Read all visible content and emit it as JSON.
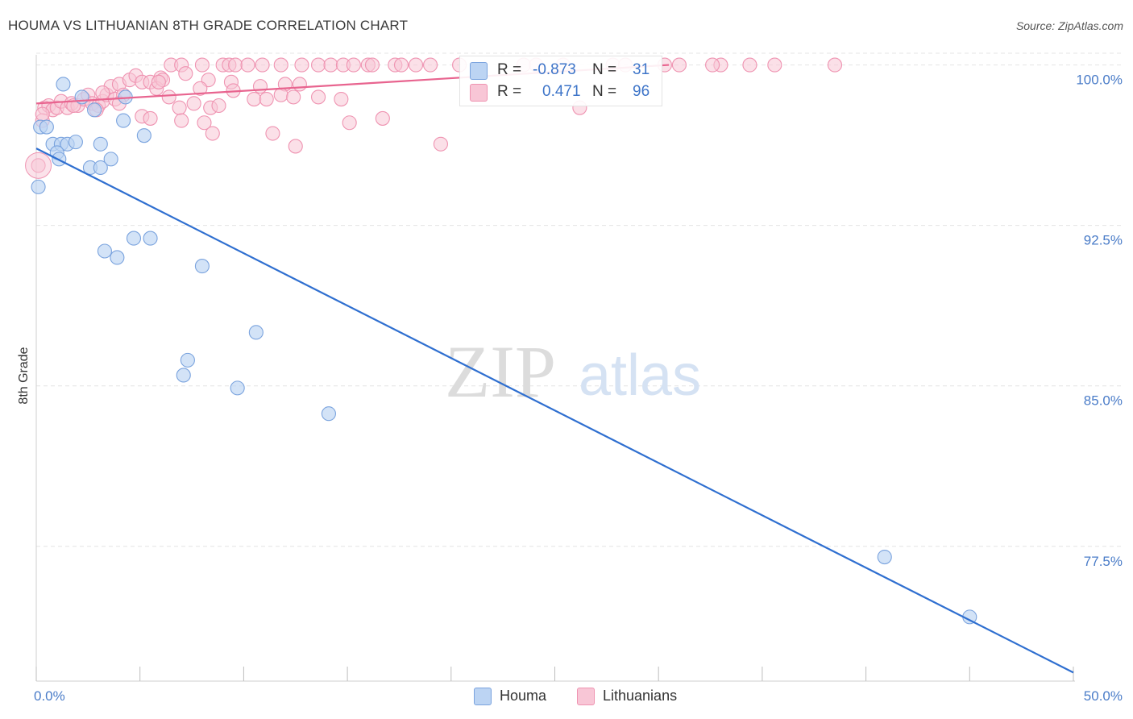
{
  "title": "HOUMA VS LITHUANIAN 8TH GRADE CORRELATION CHART",
  "source": "Source: ZipAtlas.com",
  "watermark": {
    "zip": "ZIP",
    "atlas": "atlas"
  },
  "colors": {
    "houma_fill": "#bcd4f3",
    "houma_stroke": "#7aa3de",
    "houma_line": "#2f6fd0",
    "lith_fill": "#f8c6d6",
    "lith_stroke": "#ef93b1",
    "lith_line": "#e8648f",
    "tick_label": "#4a7cc8",
    "grid": "#e4e4e4"
  },
  "legend": {
    "houma": {
      "r_label": "R =",
      "r_value": "-0.873",
      "n_label": "N =",
      "n_value": "31"
    },
    "lith": {
      "r_label": "R =",
      "r_value": "0.471",
      "n_label": "N =",
      "n_value": "96"
    }
  },
  "bottom_legend": [
    "Houma",
    "Lithuanians"
  ],
  "chart_data": {
    "type": "scatter",
    "xlabel": "",
    "ylabel": "8th Grade",
    "xlim": [
      0,
      50
    ],
    "ylim": [
      71.2,
      100.7
    ],
    "x_tick_labels": [
      {
        "value": 0,
        "label": "0.0%"
      },
      {
        "value": 50,
        "label": "50.0%"
      }
    ],
    "y_ticks": [
      {
        "value": 100,
        "label": "100.0%"
      },
      {
        "value": 92.5,
        "label": "92.5%"
      },
      {
        "value": 85,
        "label": "85.0%"
      },
      {
        "value": 77.5,
        "label": "77.5%"
      }
    ],
    "x_minor_ticks": [
      0,
      5,
      10,
      15,
      20,
      25,
      30,
      35,
      40,
      45,
      50
    ],
    "grid": true,
    "series": [
      {
        "name": "Houma",
        "points": [
          [
            1.3,
            99.1
          ],
          [
            0.2,
            97.1
          ],
          [
            0.5,
            97.1
          ],
          [
            0.8,
            96.3
          ],
          [
            1.2,
            96.3
          ],
          [
            1.5,
            96.3
          ],
          [
            1.9,
            96.4
          ],
          [
            3.1,
            96.3
          ],
          [
            1.0,
            95.9
          ],
          [
            1.1,
            95.6
          ],
          [
            3.6,
            95.6
          ],
          [
            2.6,
            95.2
          ],
          [
            3.1,
            95.2
          ],
          [
            0.1,
            94.3
          ],
          [
            2.2,
            98.5
          ],
          [
            2.8,
            97.9
          ],
          [
            4.2,
            97.4
          ],
          [
            5.2,
            96.7
          ],
          [
            4.3,
            98.5
          ],
          [
            4.7,
            91.9
          ],
          [
            5.5,
            91.9
          ],
          [
            3.3,
            91.3
          ],
          [
            3.9,
            91.0
          ],
          [
            8.0,
            90.6
          ],
          [
            10.6,
            87.5
          ],
          [
            7.3,
            86.2
          ],
          [
            7.1,
            85.5
          ],
          [
            9.7,
            84.9
          ],
          [
            14.1,
            83.7
          ],
          [
            40.9,
            77.0
          ],
          [
            45.0,
            74.2
          ]
        ],
        "trend": {
          "x": [
            0,
            50
          ],
          "y": [
            96.1,
            71.6
          ]
        }
      },
      {
        "name": "Lithuanians",
        "points": [
          [
            6.5,
            100
          ],
          [
            7.0,
            100
          ],
          [
            8.0,
            100
          ],
          [
            9.0,
            100
          ],
          [
            9.3,
            100
          ],
          [
            9.6,
            100
          ],
          [
            10.2,
            100
          ],
          [
            10.9,
            100
          ],
          [
            11.8,
            100
          ],
          [
            12.8,
            100
          ],
          [
            13.6,
            100
          ],
          [
            14.2,
            100
          ],
          [
            14.8,
            100
          ],
          [
            15.3,
            100
          ],
          [
            16.0,
            100
          ],
          [
            16.2,
            100
          ],
          [
            17.3,
            100
          ],
          [
            17.6,
            100
          ],
          [
            18.3,
            100
          ],
          [
            19.0,
            100
          ],
          [
            20.4,
            100
          ],
          [
            23.5,
            100
          ],
          [
            24.1,
            100
          ],
          [
            25.4,
            100
          ],
          [
            27.8,
            100
          ],
          [
            28.4,
            100
          ],
          [
            30.3,
            100
          ],
          [
            33.0,
            100
          ],
          [
            34.4,
            100
          ],
          [
            35.6,
            100
          ],
          [
            38.5,
            100
          ],
          [
            31.0,
            100.0
          ],
          [
            32.6,
            100.0
          ],
          [
            0.4,
            98.0
          ],
          [
            0.6,
            98.1
          ],
          [
            0.8,
            97.9
          ],
          [
            1.0,
            98.0
          ],
          [
            1.2,
            98.3
          ],
          [
            1.5,
            98.0
          ],
          [
            1.7,
            98.2
          ],
          [
            2.0,
            98.1
          ],
          [
            2.3,
            98.4
          ],
          [
            2.5,
            98.6
          ],
          [
            2.7,
            98.2
          ],
          [
            3.0,
            98.1
          ],
          [
            3.2,
            98.3
          ],
          [
            3.4,
            98.6
          ],
          [
            3.6,
            99.0
          ],
          [
            3.8,
            98.4
          ],
          [
            4.0,
            99.1
          ],
          [
            4.2,
            98.6
          ],
          [
            4.5,
            99.3
          ],
          [
            4.8,
            99.5
          ],
          [
            5.1,
            99.2
          ],
          [
            5.5,
            99.2
          ],
          [
            6.0,
            99.4
          ],
          [
            6.4,
            98.5
          ],
          [
            7.2,
            99.6
          ],
          [
            8.3,
            99.3
          ],
          [
            9.4,
            99.2
          ],
          [
            12.0,
            99.1
          ],
          [
            5.8,
            98.9
          ],
          [
            6.9,
            98.0
          ],
          [
            7.6,
            98.2
          ],
          [
            8.4,
            98.0
          ],
          [
            8.8,
            98.1
          ],
          [
            9.5,
            98.8
          ],
          [
            10.5,
            98.4
          ],
          [
            11.1,
            98.4
          ],
          [
            11.8,
            98.6
          ],
          [
            12.4,
            98.5
          ],
          [
            13.6,
            98.5
          ],
          [
            14.7,
            98.4
          ],
          [
            5.1,
            97.6
          ],
          [
            5.5,
            97.5
          ],
          [
            7.0,
            97.4
          ],
          [
            8.1,
            97.3
          ],
          [
            8.5,
            96.8
          ],
          [
            11.4,
            96.8
          ],
          [
            12.5,
            96.2
          ],
          [
            15.1,
            97.3
          ],
          [
            16.7,
            97.5
          ],
          [
            19.5,
            96.3
          ],
          [
            26.2,
            98.0
          ],
          [
            3.2,
            98.7
          ],
          [
            7.9,
            98.9
          ],
          [
            6.1,
            99.3
          ],
          [
            0.3,
            97.4
          ],
          [
            0.1,
            95.3
          ],
          [
            0.3,
            97.7
          ],
          [
            1.8,
            98.1
          ],
          [
            10.8,
            99.0
          ],
          [
            5.9,
            99.2
          ],
          [
            12.7,
            99.1
          ],
          [
            4.0,
            98.2
          ],
          [
            2.9,
            97.9
          ]
        ],
        "trend": {
          "x": [
            0,
            30.5
          ],
          "y": [
            98.2,
            100.0
          ]
        }
      }
    ]
  }
}
